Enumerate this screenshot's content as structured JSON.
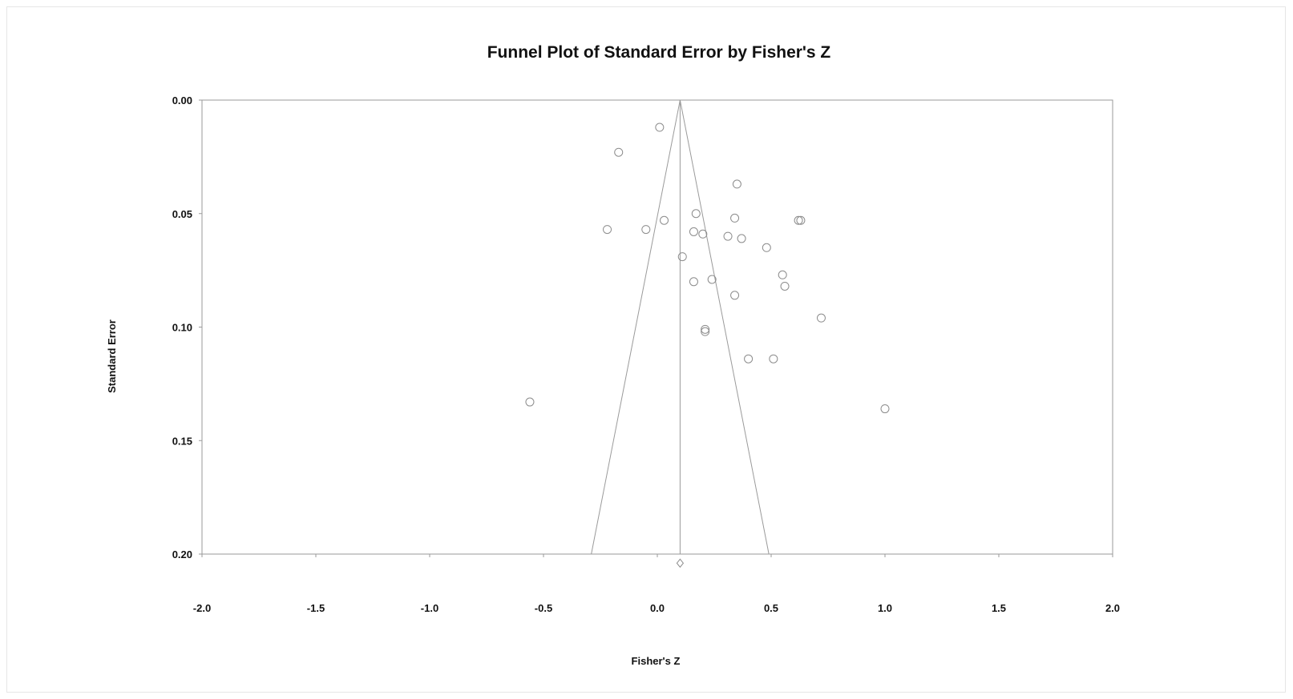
{
  "chart_data": {
    "type": "scatter",
    "title": "Funnel Plot of Standard Error by Fisher's Z",
    "xlabel": "Fisher's Z",
    "ylabel": "Standard Error",
    "xlim": [
      -2.0,
      2.0
    ],
    "ylim": [
      0.0,
      0.2
    ],
    "y_axis_inverted": true,
    "x_ticks": [
      "-2.0",
      "-1.5",
      "-1.0",
      "-0.5",
      "0.0",
      "0.5",
      "1.0",
      "1.5",
      "2.0"
    ],
    "y_ticks": [
      "0.00",
      "0.05",
      "0.10",
      "0.15",
      "0.20"
    ],
    "grid": false,
    "legend": "none",
    "funnel": {
      "center_z": 0.1,
      "apex_se": 0.0,
      "base_se": 0.2,
      "left_base_z": -0.29,
      "right_base_z": 0.49
    },
    "combined_effect": {
      "z": 0.1,
      "se": 0.204,
      "marker": "diamond"
    },
    "points": [
      {
        "z": 0.01,
        "se": 0.012
      },
      {
        "z": -0.17,
        "se": 0.023
      },
      {
        "z": 0.35,
        "se": 0.037
      },
      {
        "z": -0.22,
        "se": 0.057
      },
      {
        "z": -0.05,
        "se": 0.057
      },
      {
        "z": 0.03,
        "se": 0.053
      },
      {
        "z": 0.17,
        "se": 0.05
      },
      {
        "z": 0.16,
        "se": 0.058
      },
      {
        "z": 0.2,
        "se": 0.059
      },
      {
        "z": 0.31,
        "se": 0.06
      },
      {
        "z": 0.34,
        "se": 0.052
      },
      {
        "z": 0.37,
        "se": 0.061
      },
      {
        "z": 0.48,
        "se": 0.065
      },
      {
        "z": 0.62,
        "se": 0.053
      },
      {
        "z": 0.63,
        "se": 0.053
      },
      {
        "z": 0.11,
        "se": 0.069
      },
      {
        "z": 0.16,
        "se": 0.08
      },
      {
        "z": 0.24,
        "se": 0.079
      },
      {
        "z": 0.55,
        "se": 0.077
      },
      {
        "z": 0.56,
        "se": 0.082
      },
      {
        "z": 0.34,
        "se": 0.086
      },
      {
        "z": 0.72,
        "se": 0.096
      },
      {
        "z": 0.21,
        "se": 0.101
      },
      {
        "z": 0.21,
        "se": 0.102
      },
      {
        "z": 0.4,
        "se": 0.114
      },
      {
        "z": 0.51,
        "se": 0.114
      },
      {
        "z": -0.56,
        "se": 0.133
      },
      {
        "z": 1.0,
        "se": 0.136
      }
    ],
    "colors": {
      "axis": "#9a9a9a",
      "funnel": "#9a9a9a",
      "point": "#8c8c8c",
      "text": "#111111"
    }
  }
}
